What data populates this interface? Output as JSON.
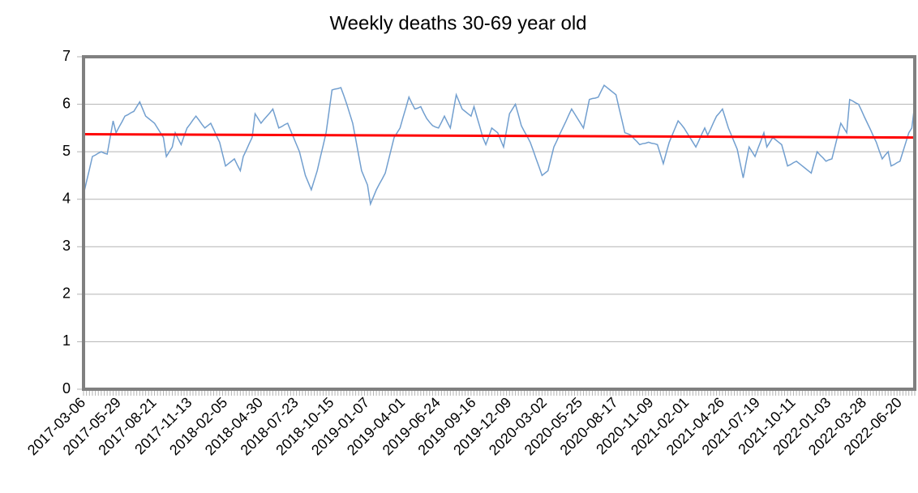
{
  "chart_data": {
    "type": "line",
    "title": "Weekly deaths 30-69 year old",
    "categories": [
      "2017-03-06",
      null,
      null,
      null,
      null,
      null,
      null,
      null,
      null,
      null,
      null,
      null,
      "2017-05-29",
      null,
      null,
      null,
      null,
      null,
      null,
      null,
      null,
      null,
      null,
      null,
      "2017-08-21",
      null,
      null,
      null,
      null,
      null,
      null,
      null,
      null,
      null,
      null,
      null,
      "2017-11-13",
      null,
      null,
      null,
      null,
      null,
      null,
      null,
      null,
      null,
      null,
      null,
      "2018-02-05",
      null,
      null,
      null,
      null,
      null,
      null,
      null,
      null,
      null,
      null,
      null,
      "2018-04-30",
      null,
      null,
      null,
      null,
      null,
      null,
      null,
      null,
      null,
      null,
      null,
      "2018-07-23",
      null,
      null,
      null,
      null,
      null,
      null,
      null,
      null,
      null,
      null,
      null,
      "2018-10-15",
      null,
      null,
      null,
      null,
      null,
      null,
      null,
      null,
      null,
      null,
      null,
      "2019-01-07",
      null,
      null,
      null,
      null,
      null,
      null,
      null,
      null,
      null,
      null,
      null,
      "2019-04-01",
      null,
      null,
      null,
      null,
      null,
      null,
      null,
      null,
      null,
      null,
      null,
      "2019-06-24",
      null,
      null,
      null,
      null,
      null,
      null,
      null,
      null,
      null,
      null,
      null,
      "2019-09-16",
      null,
      null,
      null,
      null,
      null,
      null,
      null,
      null,
      null,
      null,
      null,
      "2019-12-09",
      null,
      null,
      null,
      null,
      null,
      null,
      null,
      null,
      null,
      null,
      null,
      "2020-03-02",
      null,
      null,
      null,
      null,
      null,
      null,
      null,
      null,
      null,
      null,
      null,
      "2020-05-25",
      null,
      null,
      null,
      null,
      null,
      null,
      null,
      null,
      null,
      null,
      null,
      "2020-08-17",
      null,
      null,
      null,
      null,
      null,
      null,
      null,
      null,
      null,
      null,
      null,
      "2020-11-09",
      null,
      null,
      null,
      null,
      null,
      null,
      null,
      null,
      null,
      null,
      null,
      "2021-02-01",
      null,
      null,
      null,
      null,
      null,
      null,
      null,
      null,
      null,
      null,
      null,
      "2021-04-26",
      null,
      null,
      null,
      null,
      null,
      null,
      null,
      null,
      null,
      null,
      null,
      "2021-07-19",
      null,
      null,
      null,
      null,
      null,
      null,
      null,
      null,
      null,
      null,
      null,
      "2021-10-11",
      null,
      null,
      null,
      null,
      null,
      null,
      null,
      null,
      null,
      null,
      null,
      "2022-01-03",
      null,
      null,
      null,
      null,
      null,
      null,
      null,
      null,
      null,
      null,
      null,
      "2022-03-28",
      null,
      null,
      null,
      null,
      null,
      null,
      null,
      null,
      null,
      null,
      null,
      "2022-06-20",
      null,
      null,
      null,
      null,
      null
    ],
    "series": [
      {
        "color": "#729fcf",
        "values": [
          4.1,
          4.37,
          4.63,
          4.9,
          4.93,
          4.97,
          5.0,
          4.97,
          4.95,
          5.3,
          5.65,
          5.4,
          5.52,
          5.63,
          5.75,
          5.78,
          5.82,
          5.85,
          5.95,
          6.05,
          5.9,
          5.75,
          5.7,
          5.65,
          5.6,
          5.5,
          5.4,
          5.3,
          4.9,
          5.0,
          5.1,
          5.4,
          5.27,
          5.15,
          5.33,
          5.5,
          5.58,
          5.67,
          5.75,
          5.67,
          5.58,
          5.5,
          5.55,
          5.6,
          5.47,
          5.33,
          5.2,
          4.95,
          4.7,
          4.75,
          4.8,
          4.85,
          4.72,
          4.6,
          4.9,
          5.03,
          5.17,
          5.3,
          5.8,
          5.7,
          5.6,
          5.68,
          5.75,
          5.82,
          5.9,
          5.7,
          5.5,
          5.53,
          5.57,
          5.6,
          5.45,
          5.3,
          5.15,
          5.0,
          4.75,
          4.5,
          4.35,
          4.2,
          4.4,
          4.6,
          4.87,
          5.13,
          5.4,
          5.85,
          6.3,
          6.32,
          6.33,
          6.35,
          6.18,
          6.0,
          5.8,
          5.6,
          5.27,
          4.93,
          4.6,
          4.45,
          4.3,
          3.9,
          4.05,
          4.2,
          4.32,
          4.43,
          4.55,
          4.8,
          5.05,
          5.3,
          5.4,
          5.5,
          5.72,
          5.93,
          6.15,
          6.02,
          5.9,
          5.92,
          5.95,
          5.82,
          5.7,
          5.62,
          5.55,
          5.52,
          5.5,
          5.62,
          5.75,
          5.62,
          5.5,
          5.85,
          6.2,
          6.05,
          5.9,
          5.85,
          5.8,
          5.75,
          5.95,
          5.73,
          5.52,
          5.3,
          5.15,
          5.32,
          5.5,
          5.45,
          5.4,
          5.25,
          5.1,
          5.45,
          5.8,
          5.9,
          6.0,
          5.78,
          5.55,
          5.43,
          5.32,
          5.2,
          5.03,
          4.85,
          4.68,
          4.5,
          4.55,
          4.6,
          4.85,
          5.1,
          5.23,
          5.37,
          5.5,
          5.63,
          5.77,
          5.9,
          5.8,
          5.7,
          5.6,
          5.5,
          5.8,
          6.1,
          6.12,
          6.13,
          6.15,
          6.28,
          6.4,
          6.35,
          6.3,
          6.25,
          6.2,
          5.93,
          5.67,
          5.4,
          5.38,
          5.35,
          5.28,
          5.22,
          5.15,
          5.17,
          5.18,
          5.2,
          5.18,
          5.17,
          5.15,
          4.95,
          4.75,
          4.98,
          5.2,
          5.35,
          5.5,
          5.65,
          5.58,
          5.5,
          5.4,
          5.3,
          5.2,
          5.1,
          5.23,
          5.37,
          5.5,
          5.35,
          5.48,
          5.62,
          5.75,
          5.82,
          5.9,
          5.7,
          5.5,
          5.35,
          5.2,
          5.05,
          4.75,
          4.45,
          4.78,
          5.1,
          5.0,
          4.9,
          5.07,
          5.23,
          5.4,
          5.1,
          5.2,
          5.3,
          5.25,
          5.2,
          5.15,
          4.93,
          4.7,
          4.73,
          4.77,
          4.8,
          4.75,
          4.7,
          4.65,
          4.6,
          4.55,
          4.78,
          5.0,
          4.93,
          4.87,
          4.8,
          4.83,
          4.85,
          5.1,
          5.35,
          5.6,
          5.5,
          5.4,
          6.1,
          6.07,
          6.03,
          6.0,
          5.87,
          5.73,
          5.6,
          5.47,
          5.33,
          5.2,
          5.02,
          4.85,
          4.93,
          5.0,
          4.7,
          4.73,
          4.77,
          4.8,
          5.0,
          5.2,
          5.4,
          5.5,
          6.0
        ]
      }
    ],
    "trendline": {
      "color": "#ff0000",
      "values": [
        5.37,
        5.3
      ]
    },
    "ylim": [
      0,
      7
    ],
    "yticks": [
      0,
      1,
      2,
      3,
      4,
      5,
      6,
      7
    ],
    "grid": true
  }
}
